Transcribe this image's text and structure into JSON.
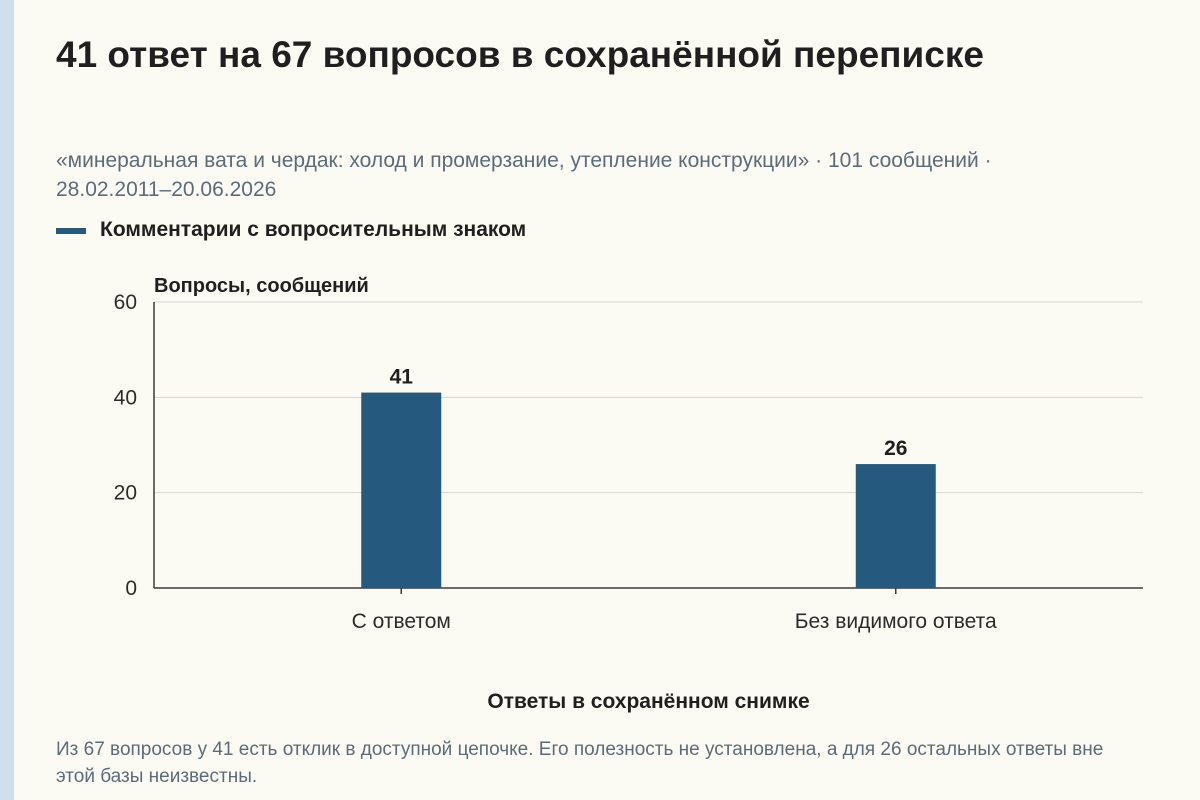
{
  "title": "41 ответ на 67 вопросов в сохранённой переписке",
  "subtitle": "«минеральная вата и чердак: холод и промерзание, утепление конструкции» · 101 сообщений · 28.02.2011–20.06.2026",
  "legend": {
    "label": "Комментарии с вопросительным знаком",
    "color": "#25597d"
  },
  "footnote": "Из 67 вопросов у 41 есть отклик в доступной цепочке. Его полезность не установлена, а для 26 остальных ответы вне этой базы неизвестны.",
  "chart_data": {
    "type": "bar",
    "title": "",
    "xlabel": "Ответы в сохранённом снимке",
    "ylabel": "Вопросы, сообщений",
    "categories": [
      "С ответом",
      "Без видимого ответа"
    ],
    "series": [
      {
        "name": "Комментарии с вопросительным знаком",
        "values": [
          41,
          26
        ]
      }
    ],
    "data_labels": [
      "41",
      "26"
    ],
    "ylim": [
      0,
      60
    ],
    "yticks": [
      0,
      20,
      40,
      60
    ],
    "ytick_labels": [
      "0",
      "20",
      "40",
      "60"
    ],
    "grid": true,
    "legend_position": "top-left",
    "bar_color": "#25597d"
  }
}
